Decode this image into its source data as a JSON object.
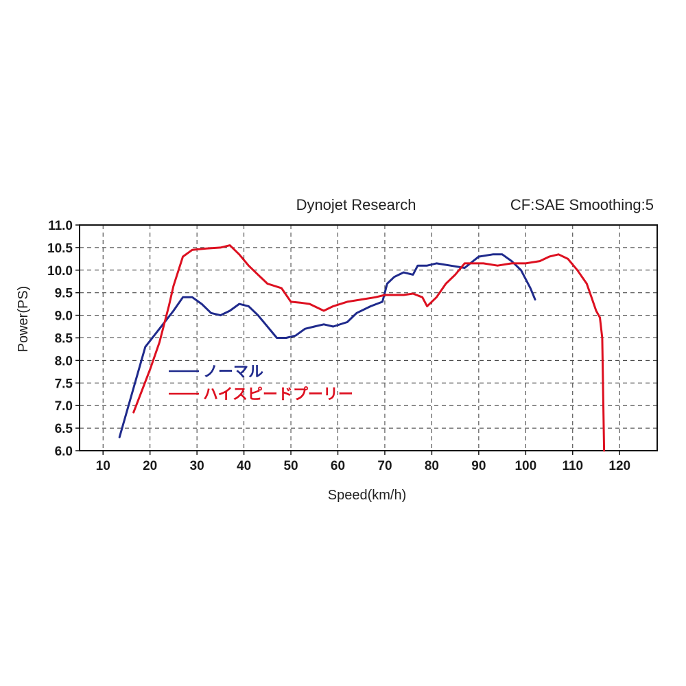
{
  "chart_data": {
    "type": "line",
    "header_left": "Dynojet Research",
    "header_right": "CF:SAE Smoothing:5",
    "xlabel": "Speed(km/h)",
    "ylabel": "Power(PS)",
    "xlim": [
      5,
      128
    ],
    "ylim": [
      6.0,
      11.0
    ],
    "x_ticks": [
      "10",
      "20",
      "30",
      "40",
      "50",
      "60",
      "70",
      "80",
      "90",
      "100",
      "110",
      "120"
    ],
    "y_ticks": [
      "6.0",
      "6.5",
      "7.0",
      "7.5",
      "8.0",
      "8.5",
      "9.0",
      "9.5",
      "10.0",
      "10.5",
      "11.0"
    ],
    "grid": true,
    "legend_position": "center-left",
    "series": [
      {
        "name": "ノーマル",
        "color": "#1f2a8c",
        "points": [
          [
            13.5,
            6.3
          ],
          [
            19,
            8.3
          ],
          [
            22,
            8.7
          ],
          [
            25,
            9.1
          ],
          [
            27,
            9.4
          ],
          [
            29,
            9.4
          ],
          [
            31,
            9.25
          ],
          [
            33,
            9.05
          ],
          [
            35,
            9.0
          ],
          [
            37,
            9.1
          ],
          [
            39,
            9.25
          ],
          [
            41,
            9.2
          ],
          [
            43,
            9.0
          ],
          [
            45,
            8.75
          ],
          [
            47,
            8.5
          ],
          [
            49,
            8.5
          ],
          [
            51,
            8.55
          ],
          [
            53,
            8.7
          ],
          [
            55,
            8.75
          ],
          [
            57,
            8.8
          ],
          [
            59,
            8.75
          ],
          [
            62,
            8.85
          ],
          [
            64,
            9.05
          ],
          [
            67,
            9.2
          ],
          [
            69.5,
            9.3
          ],
          [
            70.5,
            9.7
          ],
          [
            72,
            9.85
          ],
          [
            74,
            9.95
          ],
          [
            76,
            9.9
          ],
          [
            77,
            10.1
          ],
          [
            79,
            10.1
          ],
          [
            81,
            10.15
          ],
          [
            84,
            10.1
          ],
          [
            87,
            10.05
          ],
          [
            90,
            10.3
          ],
          [
            93,
            10.35
          ],
          [
            95,
            10.35
          ],
          [
            97,
            10.2
          ],
          [
            99,
            10.0
          ],
          [
            101,
            9.6
          ],
          [
            102,
            9.35
          ]
        ]
      },
      {
        "name": "ハイスピードプーリー",
        "color": "#dd1020",
        "points": [
          [
            16.5,
            6.85
          ],
          [
            20,
            7.8
          ],
          [
            22,
            8.4
          ],
          [
            24,
            9.2
          ],
          [
            25,
            9.65
          ],
          [
            27,
            10.3
          ],
          [
            29,
            10.45
          ],
          [
            32,
            10.48
          ],
          [
            35,
            10.5
          ],
          [
            37,
            10.55
          ],
          [
            39,
            10.35
          ],
          [
            41,
            10.1
          ],
          [
            43,
            9.9
          ],
          [
            45,
            9.7
          ],
          [
            48,
            9.6
          ],
          [
            50,
            9.3
          ],
          [
            52,
            9.28
          ],
          [
            54,
            9.25
          ],
          [
            57,
            9.1
          ],
          [
            59,
            9.2
          ],
          [
            62,
            9.3
          ],
          [
            65,
            9.35
          ],
          [
            68,
            9.4
          ],
          [
            70,
            9.45
          ],
          [
            72,
            9.45
          ],
          [
            74,
            9.45
          ],
          [
            76,
            9.48
          ],
          [
            78,
            9.4
          ],
          [
            79,
            9.2
          ],
          [
            81,
            9.4
          ],
          [
            83,
            9.7
          ],
          [
            85,
            9.9
          ],
          [
            87,
            10.15
          ],
          [
            89,
            10.15
          ],
          [
            91,
            10.15
          ],
          [
            94,
            10.1
          ],
          [
            97,
            10.15
          ],
          [
            100,
            10.15
          ],
          [
            103,
            10.2
          ],
          [
            105,
            10.3
          ],
          [
            107,
            10.35
          ],
          [
            109,
            10.25
          ],
          [
            111,
            10.0
          ],
          [
            113,
            9.7
          ],
          [
            114,
            9.4
          ],
          [
            115,
            9.1
          ],
          [
            115.8,
            8.95
          ],
          [
            116.3,
            8.5
          ],
          [
            116.5,
            7.2
          ],
          [
            116.7,
            6.0
          ]
        ]
      }
    ]
  }
}
